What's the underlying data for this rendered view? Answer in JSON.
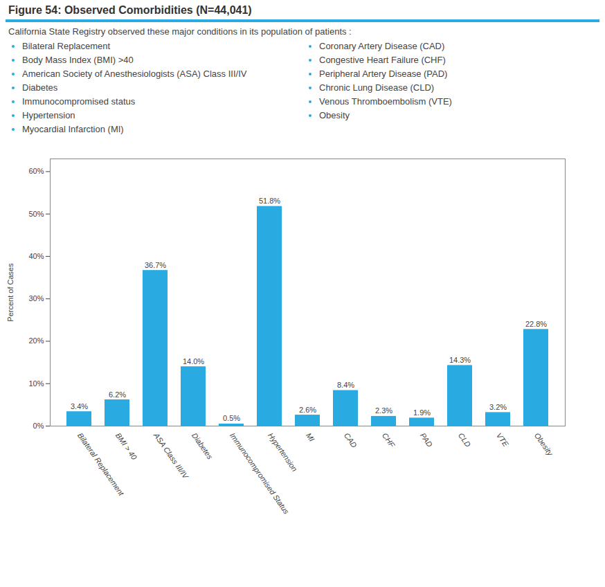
{
  "chart_data": {
    "type": "bar",
    "title": "Figure 54: Observed Comorbidities (N=44,041)",
    "subtitle": "California State Registry observed these major conditions in its population of patients :",
    "annotations": [
      "Bilateral Replacement",
      "Body Mass Index (BMI) >40",
      "American Society of Anesthesiologists (ASA) Class III/IV",
      "Diabetes",
      "Immunocompromised status",
      "Hypertension",
      "Myocardial Infarction (MI)",
      "Coronary Artery Disease (CAD)",
      "Congestive Heart Failure (CHF)",
      "Peripheral Artery Disease (PAD)",
      "Chronic Lung Disease (CLD)",
      "Venous Thromboembolism (VTE)",
      "Obesity"
    ],
    "categories": [
      "Bilateral Replacement",
      "BMI > 40",
      "ASA Class III/IV",
      "Diabetes",
      "Immunocompromised Status",
      "Hypertension",
      "MI",
      "CAD",
      "CHF",
      "PAD",
      "CLD",
      "VTE",
      "Obesity"
    ],
    "values": [
      3.4,
      6.2,
      36.7,
      14.0,
      0.5,
      51.8,
      2.6,
      8.4,
      2.3,
      1.9,
      14.3,
      3.2,
      22.8
    ],
    "value_labels": [
      "3.4%",
      "6.2%",
      "36.7%",
      "14.0%",
      "0.5%",
      "51.8%",
      "2.6%",
      "8.4%",
      "2.3%",
      "1.9%",
      "14.3%",
      "3.2%",
      "22.8%"
    ],
    "data_labels": true,
    "color": "#29ABE2",
    "ylabel": "Percent of Cases",
    "ylim": [
      0,
      63
    ],
    "yticks": [
      {
        "value": 0,
        "label": "0%"
      },
      {
        "value": 10,
        "label": "10%"
      },
      {
        "value": 20,
        "label": "20%"
      },
      {
        "value": 30,
        "label": "30%"
      },
      {
        "value": 40,
        "label": "40%"
      },
      {
        "value": 50,
        "label": "50%"
      },
      {
        "value": 60,
        "label": "60%"
      }
    ],
    "grid": false
  }
}
